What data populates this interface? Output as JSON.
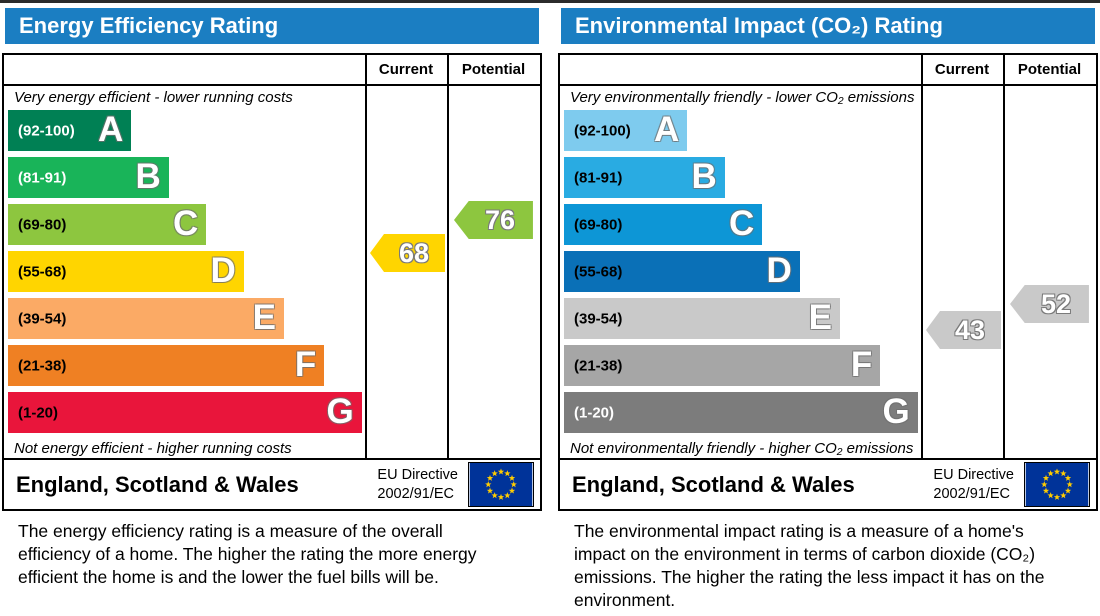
{
  "panels": [
    {
      "title": "Energy Efficiency Rating",
      "columns": {
        "current": "Current",
        "potential": "Potential"
      },
      "top_caption": "Very energy efficient - lower running costs",
      "bottom_caption": "Not energy efficient - higher running costs",
      "bands": [
        {
          "range": "(92-100)",
          "letter": "A",
          "color": "#008054",
          "label_color": "#ffffff",
          "width_pct": 23
        },
        {
          "range": "(81-91)",
          "letter": "B",
          "color": "#19b459",
          "label_color": "#ffffff",
          "width_pct": 30
        },
        {
          "range": "(69-80)",
          "letter": "C",
          "color": "#8dc63f",
          "label_color": "#000000",
          "width_pct": 37
        },
        {
          "range": "(55-68)",
          "letter": "D",
          "color": "#ffd500",
          "label_color": "#000000",
          "width_pct": 44
        },
        {
          "range": "(39-54)",
          "letter": "E",
          "color": "#fbaa65",
          "label_color": "#000000",
          "width_pct": 51.5
        },
        {
          "range": "(21-38)",
          "letter": "F",
          "color": "#ef8023",
          "label_color": "#000000",
          "width_pct": 59
        },
        {
          "range": "(1-20)",
          "letter": "G",
          "color": "#e9153b",
          "label_color": "#000000",
          "width_pct": 66
        }
      ],
      "current": {
        "value": "68",
        "color": "#ffd500"
      },
      "potential": {
        "value": "76",
        "color": "#8dc63f"
      },
      "footer": {
        "region": "England, Scotland & Wales",
        "directive_line1": "EU Directive",
        "directive_line2": "2002/91/EC"
      },
      "description": "The energy efficiency rating is a measure of the overall efficiency of a home. The higher the rating the more energy efficient the home is and the lower the fuel bills will be."
    },
    {
      "title": "Environmental Impact (CO₂) Rating",
      "columns": {
        "current": "Current",
        "potential": "Potential"
      },
      "top_caption": "Very environmentally friendly - lower CO₂ emissions",
      "bottom_caption": "Not environmentally friendly - higher CO₂ emissions",
      "bands": [
        {
          "range": "(92-100)",
          "letter": "A",
          "color": "#7ecbee",
          "label_color": "#000000",
          "width_pct": 23
        },
        {
          "range": "(81-91)",
          "letter": "B",
          "color": "#29abe2",
          "label_color": "#000000",
          "width_pct": 30
        },
        {
          "range": "(69-80)",
          "letter": "C",
          "color": "#0d96d6",
          "label_color": "#000000",
          "width_pct": 37
        },
        {
          "range": "(55-68)",
          "letter": "D",
          "color": "#0a70b7",
          "label_color": "#000000",
          "width_pct": 44
        },
        {
          "range": "(39-54)",
          "letter": "E",
          "color": "#c9c9c9",
          "label_color": "#000000",
          "width_pct": 51.5
        },
        {
          "range": "(21-38)",
          "letter": "F",
          "color": "#a6a6a6",
          "label_color": "#000000",
          "width_pct": 59
        },
        {
          "range": "(1-20)",
          "letter": "G",
          "color": "#7c7c7c",
          "label_color": "#ffffff",
          "width_pct": 66
        }
      ],
      "current": {
        "value": "43",
        "color": "#c9c9c9"
      },
      "potential": {
        "value": "52",
        "color": "#c9c9c9"
      },
      "footer": {
        "region": "England, Scotland & Wales",
        "directive_line1": "EU Directive",
        "directive_line2": "2002/91/EC"
      },
      "description": "The environmental impact rating is a measure of a home's impact on the environment in terms of carbon dioxide (CO₂) emissions. The higher the rating the less impact it has on the environment."
    }
  ],
  "chart_data": [
    {
      "type": "bar",
      "title": "Energy Efficiency Rating",
      "categories": [
        "A (92-100)",
        "B (81-91)",
        "C (69-80)",
        "D (55-68)",
        "E (39-54)",
        "F (21-38)",
        "G (1-20)"
      ],
      "band_colors": [
        "#008054",
        "#19b459",
        "#8dc63f",
        "#ffd500",
        "#fbaa65",
        "#ef8023",
        "#e9153b"
      ],
      "series": [
        {
          "name": "Current",
          "values": [
            68
          ]
        },
        {
          "name": "Potential",
          "values": [
            76
          ]
        }
      ],
      "annotations": [
        "Very energy efficient - lower running costs",
        "Not energy efficient - higher running costs"
      ],
      "value_range": [
        1,
        100
      ]
    },
    {
      "type": "bar",
      "title": "Environmental Impact (CO₂) Rating",
      "categories": [
        "A (92-100)",
        "B (81-91)",
        "C (69-80)",
        "D (55-68)",
        "E (39-54)",
        "F (21-38)",
        "G (1-20)"
      ],
      "band_colors": [
        "#7ecbee",
        "#29abe2",
        "#0d96d6",
        "#0a70b7",
        "#c9c9c9",
        "#a6a6a6",
        "#7c7c7c"
      ],
      "series": [
        {
          "name": "Current",
          "values": [
            43
          ]
        },
        {
          "name": "Potential",
          "values": [
            52
          ]
        }
      ],
      "annotations": [
        "Very environmentally friendly - lower CO₂ emissions",
        "Not environmentally friendly - higher CO₂ emissions"
      ],
      "value_range": [
        1,
        100
      ]
    }
  ],
  "theme": {
    "header_blue": "#1b7ec2",
    "flag_blue": "#003399",
    "flag_star_yellow": "#ffcc00"
  }
}
